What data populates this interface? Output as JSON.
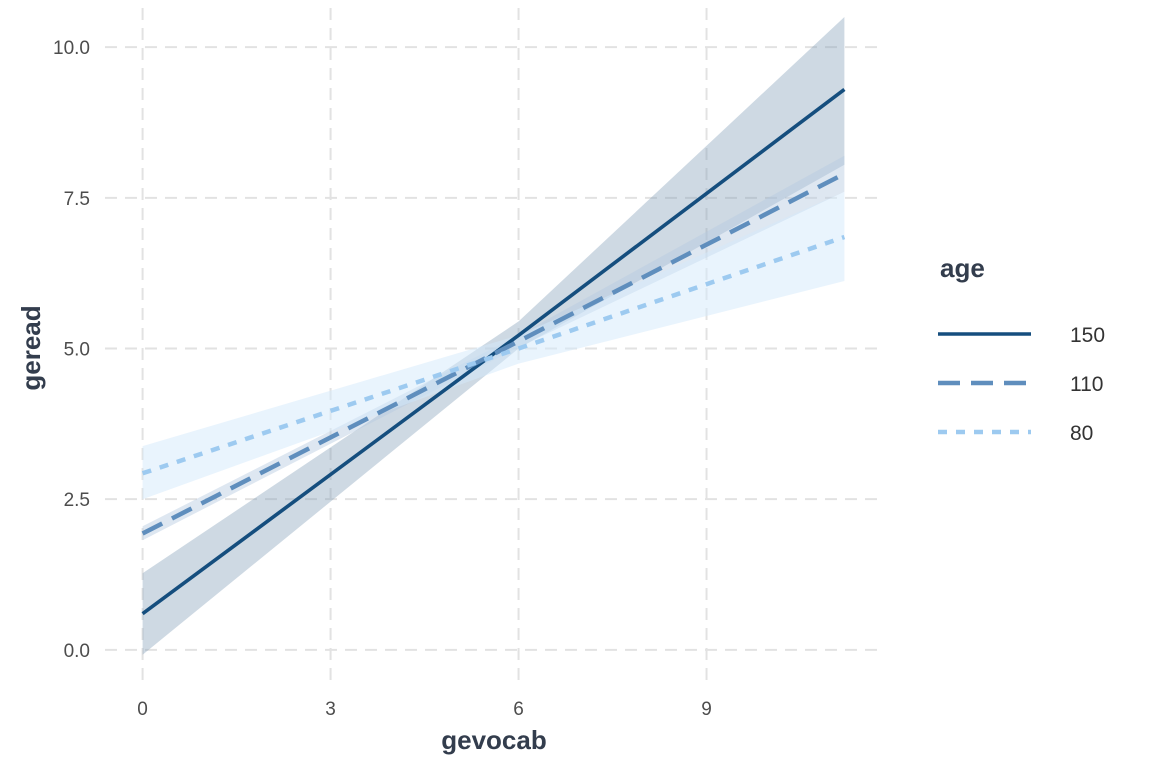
{
  "chart_data": {
    "type": "line",
    "title": "",
    "xlabel": "gevocab",
    "ylabel": "geread",
    "xlim": [
      -0.6,
      11.8
    ],
    "ylim": [
      -0.55,
      10.65
    ],
    "x_ticks": [
      0,
      3,
      6,
      9
    ],
    "x_tick_labels": [
      "0",
      "3",
      "6",
      "9"
    ],
    "y_ticks": [
      0,
      2.5,
      5,
      7.5,
      10
    ],
    "y_tick_labels": [
      "0.0",
      "2.5",
      "5.0",
      "7.5",
      "10.0"
    ],
    "grid": true,
    "legend": {
      "title": "age",
      "position": "right"
    },
    "series": [
      {
        "name": "150",
        "color": "#154e7e",
        "band_color": "#7d9ab5",
        "band_opacity": 0.38,
        "line_style": "solid",
        "x": [
          0,
          6,
          11.2
        ],
        "y": [
          0.6,
          5.22,
          9.3
        ],
        "lower": [
          -0.08,
          5.0,
          8.05
        ],
        "upper": [
          1.27,
          5.45,
          10.5
        ]
      },
      {
        "name": "110",
        "color": "#5f8ebd",
        "band_color": "#b6c9df",
        "band_opacity": 0.45,
        "line_style": "dashed",
        "x": [
          0,
          6,
          11.2
        ],
        "y": [
          1.93,
          5.12,
          7.9
        ],
        "lower": [
          1.82,
          5.02,
          7.6
        ],
        "upper": [
          2.05,
          5.22,
          8.2
        ]
      },
      {
        "name": "80",
        "color": "#9dcaf0",
        "band_color": "#d3e9fb",
        "band_opacity": 0.5,
        "line_style": "dotted",
        "x": [
          0,
          6,
          11.2
        ],
        "y": [
          2.93,
          5.0,
          6.85
        ],
        "lower": [
          2.5,
          4.75,
          6.12
        ],
        "upper": [
          3.38,
          5.22,
          7.6
        ]
      }
    ]
  }
}
